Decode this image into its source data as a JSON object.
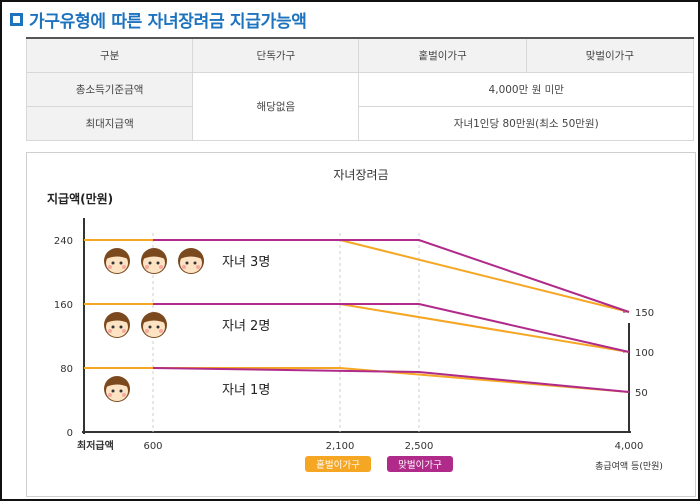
{
  "page": {
    "title": "가구유형에 따른 자녀장려금 지급가능액"
  },
  "table": {
    "headers": [
      "구분",
      "단독가구",
      "홑벌이가구",
      "맞벌이가구"
    ],
    "row1_label": "총소득기준금액",
    "row2_label": "최대지급액",
    "single_value": "해당없음",
    "row1_value": "4,000만 원 미만",
    "row2_value": "자녀1인당 80만원(최소 50만원)"
  },
  "chart_data": {
    "type": "line",
    "title": "자녀장려금",
    "ylabel": "지급액(만원)",
    "xlabel": "총급여액 등(만원)",
    "x_min_label": "최저급액",
    "xticks": [
      {
        "value": 600,
        "label": "600"
      },
      {
        "value": 2100,
        "label": "2,100"
      },
      {
        "value": 2500,
        "label": "2,500"
      },
      {
        "value": 4000,
        "label": "4,000"
      }
    ],
    "yticks": [
      0,
      80,
      160,
      240
    ],
    "right_labels": [
      {
        "value": 150,
        "label": "150"
      },
      {
        "value": 100,
        "label": "100"
      },
      {
        "value": 50,
        "label": "50"
      }
    ],
    "colors": {
      "single_earner": "#f5a623",
      "dual_earner": "#b02a8a"
    },
    "legend": [
      "홑벌이가구",
      "맞벌이가구"
    ],
    "groups": [
      {
        "label": "자녀 3명",
        "children": 3
      },
      {
        "label": "자녀 2명",
        "children": 2
      },
      {
        "label": "자녀 1명",
        "children": 1
      }
    ],
    "series": [
      {
        "name": "홑벌이가구",
        "group": "자녀 3명",
        "points": [
          [
            0,
            240
          ],
          [
            2100,
            240
          ],
          [
            4000,
            150
          ]
        ]
      },
      {
        "name": "맞벌이가구",
        "group": "자녀 3명",
        "points": [
          [
            600,
            240
          ],
          [
            2500,
            240
          ],
          [
            4000,
            150
          ]
        ]
      },
      {
        "name": "홑벌이가구",
        "group": "자녀 2명",
        "points": [
          [
            0,
            160
          ],
          [
            2100,
            160
          ],
          [
            4000,
            100
          ]
        ]
      },
      {
        "name": "맞벌이가구",
        "group": "자녀 2명",
        "points": [
          [
            600,
            160
          ],
          [
            2500,
            160
          ],
          [
            4000,
            100
          ]
        ]
      },
      {
        "name": "홑벌이가구",
        "group": "자녀 1명",
        "points": [
          [
            0,
            80
          ],
          [
            2100,
            80
          ],
          [
            4000,
            50
          ]
        ]
      },
      {
        "name": "맞벌이가구",
        "group": "자녀 1명",
        "points": [
          [
            600,
            80
          ],
          [
            2500,
            75
          ],
          [
            4000,
            50
          ]
        ]
      }
    ]
  }
}
